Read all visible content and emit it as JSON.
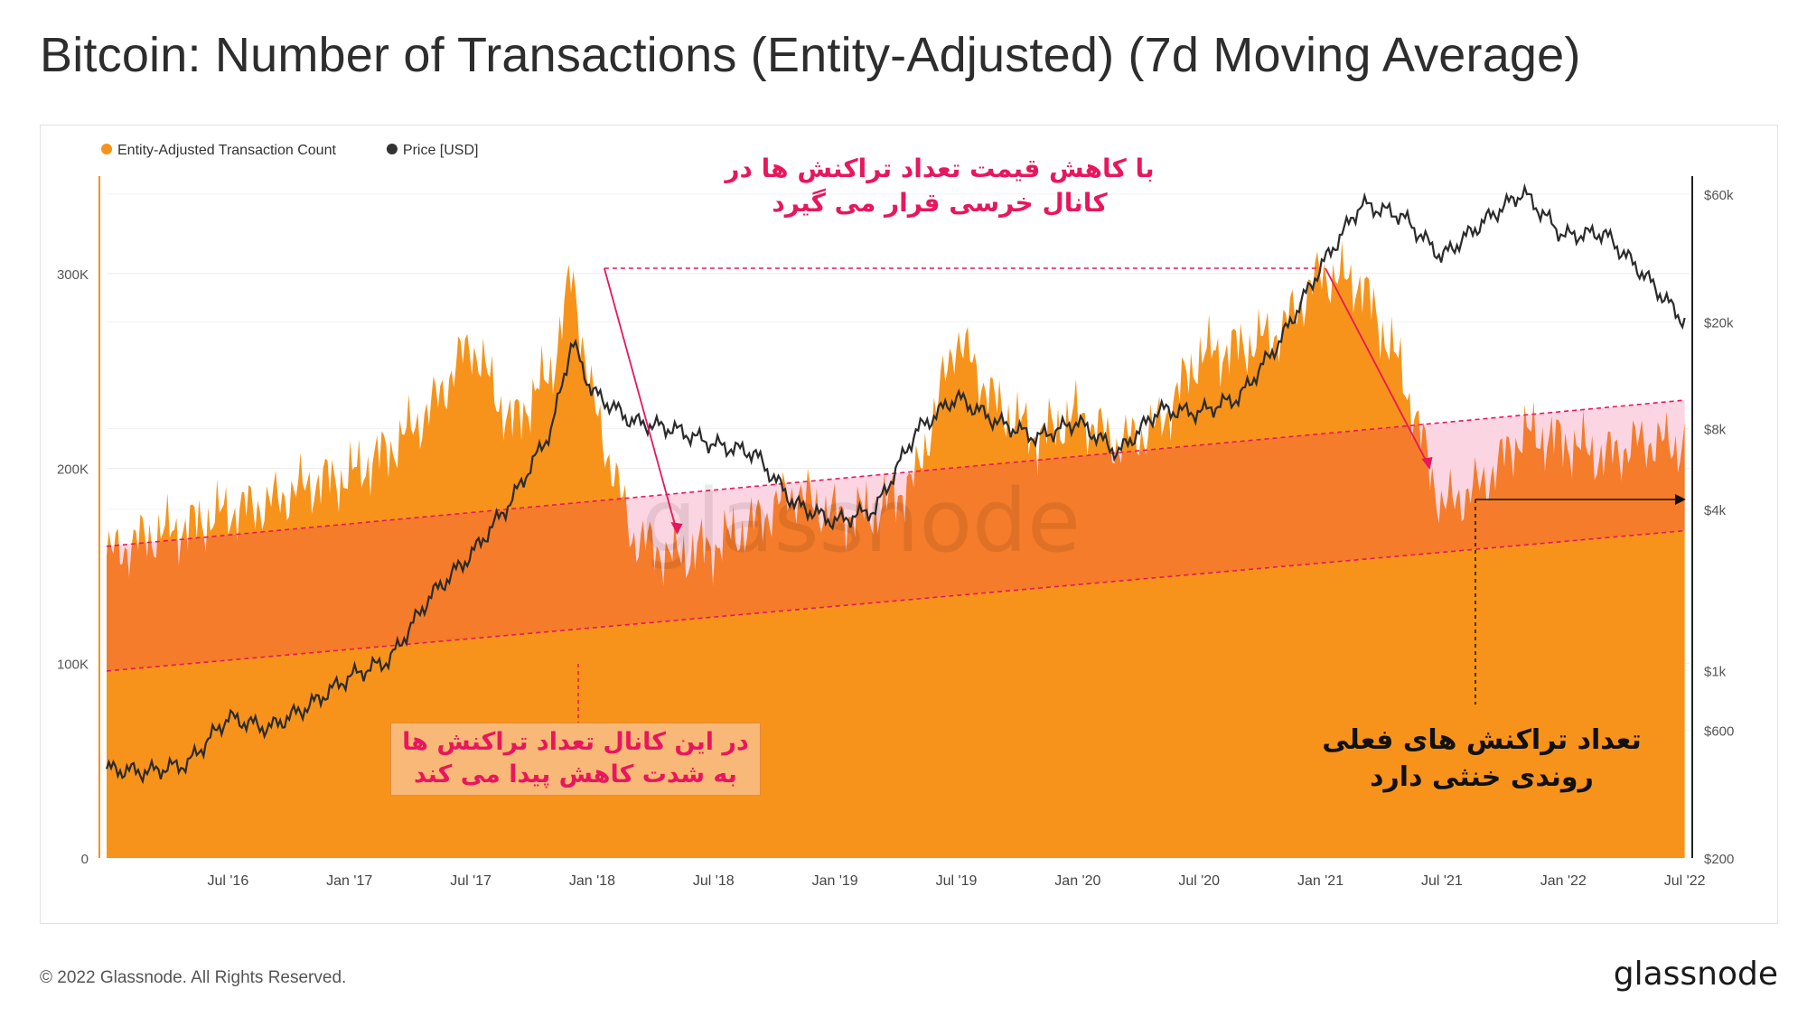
{
  "title": "Bitcoin: Number of Transactions (Entity-Adjusted) (7d Moving Average)",
  "legend": [
    {
      "label": "Entity-Adjusted Transaction Count",
      "color": "#f7931a"
    },
    {
      "label": "Price [USD]",
      "color": "#333333"
    }
  ],
  "annotations": {
    "top": "با کاهش قیمت تعداد تراکنش ها در کانال خرسی قرار می گیرد",
    "left": "در این کانال تعداد تراکنش ها به شدت کاهش پیدا می کند",
    "right": "تعداد تراکنش های فعلی روندی خنثی دارد"
  },
  "watermark": "glassnode",
  "footer": {
    "copyright": "© 2022 Glassnode. All Rights Reserved.",
    "brand": "glassnode"
  },
  "colors": {
    "count": "#f7931a",
    "channel": "#f47c2a",
    "below": "#fbd3df",
    "trend": "#e8175d",
    "price": "#2b2b2b"
  },
  "chart_data": {
    "type": "area",
    "x_ticks": [
      "Jul '16",
      "Jan '17",
      "Jul '17",
      "Jan '18",
      "Jul '18",
      "Jan '19",
      "Jul '19",
      "Jan '20",
      "Jul '20",
      "Jan '21",
      "Jul '21",
      "Jan '22",
      "Jul '22"
    ],
    "y_left_ticks": [
      "0",
      "100K",
      "200K",
      "300K"
    ],
    "y_left_range": [
      0,
      350000
    ],
    "y_right_ticks": [
      "$200",
      "$600",
      "$1k",
      "$4k",
      "$8k",
      "$20k",
      "$60k"
    ],
    "y_right_values": [
      200,
      600,
      1000,
      4000,
      8000,
      20000,
      60000
    ],
    "y_right_range": [
      200,
      70000
    ],
    "y_right_scale": "log",
    "x": [
      "2016-01",
      "2016-03",
      "2016-05",
      "2016-07",
      "2016-09",
      "2016-11",
      "2017-01",
      "2017-03",
      "2017-05",
      "2017-07",
      "2017-09",
      "2017-11",
      "2017-12",
      "2018-01",
      "2018-03",
      "2018-05",
      "2018-07",
      "2018-09",
      "2018-11",
      "2019-01",
      "2019-03",
      "2019-05",
      "2019-07",
      "2019-09",
      "2019-11",
      "2020-01",
      "2020-03",
      "2020-05",
      "2020-07",
      "2020-09",
      "2020-11",
      "2021-01",
      "2021-03",
      "2021-05",
      "2021-07",
      "2021-09",
      "2021-11",
      "2022-01",
      "2022-03",
      "2022-05",
      "2022-07"
    ],
    "series": [
      {
        "name": "Entity-Adjusted Transaction Count",
        "values": [
          155000,
          165000,
          170000,
          178000,
          182000,
          192000,
          196000,
          210000,
          230000,
          265000,
          222000,
          250000,
          300000,
          235000,
          165000,
          155000,
          160000,
          172000,
          188000,
          176000,
          178000,
          195000,
          268000,
          232000,
          216000,
          228000,
          212000,
          222000,
          258000,
          262000,
          270000,
          300000,
          295000,
          250000,
          180000,
          192000,
          218000,
          214000,
          206000,
          214000,
          212000
        ]
      },
      {
        "name": "Price [USD]",
        "values": [
          430,
          420,
          450,
          670,
          610,
          740,
          950,
          1100,
          1900,
          2700,
          4300,
          8000,
          17000,
          11000,
          8500,
          8000,
          7000,
          6500,
          4200,
          3600,
          4000,
          7800,
          10500,
          8500,
          7400,
          8500,
          6500,
          9400,
          9200,
          10500,
          17000,
          32000,
          55000,
          50000,
          35000,
          47000,
          61000,
          42000,
          43000,
          30000,
          20000
        ]
      }
    ],
    "bear_channel": {
      "upper": [
        [
          "2016-01",
          160000
        ],
        [
          "2022-07",
          235000
        ]
      ],
      "lower": [
        [
          "2016-01",
          96000
        ],
        [
          "2022-07",
          168000
        ]
      ]
    },
    "title": "",
    "xlabel": "",
    "ylabel": "",
    "grid": true,
    "legend_position": "top-left"
  }
}
